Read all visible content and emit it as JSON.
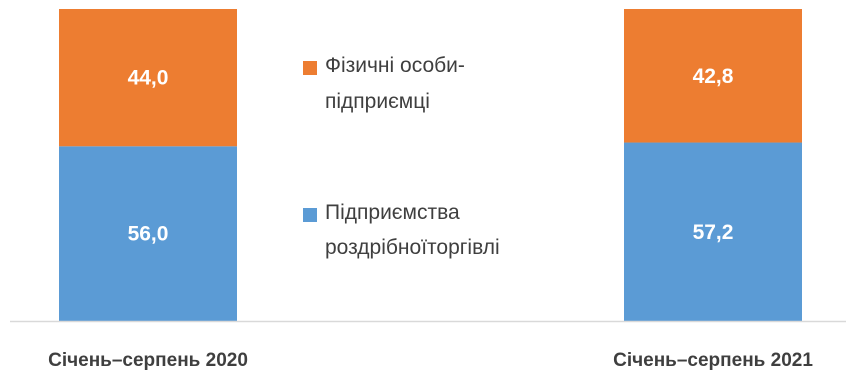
{
  "chart_data": {
    "type": "bar",
    "stacked": true,
    "categories": [
      "Січень–серпень 2020",
      "Січень–серпень 2021"
    ],
    "series": [
      {
        "name": "Підприємства роздрібноїторгівлі",
        "legend_lines": [
          "Підприємства",
          "роздрібноїторгівлі"
        ],
        "values": [
          56.0,
          57.2
        ],
        "labels": [
          "56,0",
          "57,2"
        ],
        "color": "#5b9bd5"
      },
      {
        "name": "Фізичні особи-підприємці",
        "legend_lines": [
          "Фізичні особи-",
          "підприємці"
        ],
        "values": [
          44.0,
          42.8
        ],
        "labels": [
          "44,0",
          "42,8"
        ],
        "color": "#ed7d31"
      }
    ],
    "ylim": [
      0,
      100
    ],
    "grid": false,
    "legend": "center",
    "baseline_color": "#d9d9d9",
    "label_color": "#ffffff",
    "text_color": "#3f3f3f"
  }
}
